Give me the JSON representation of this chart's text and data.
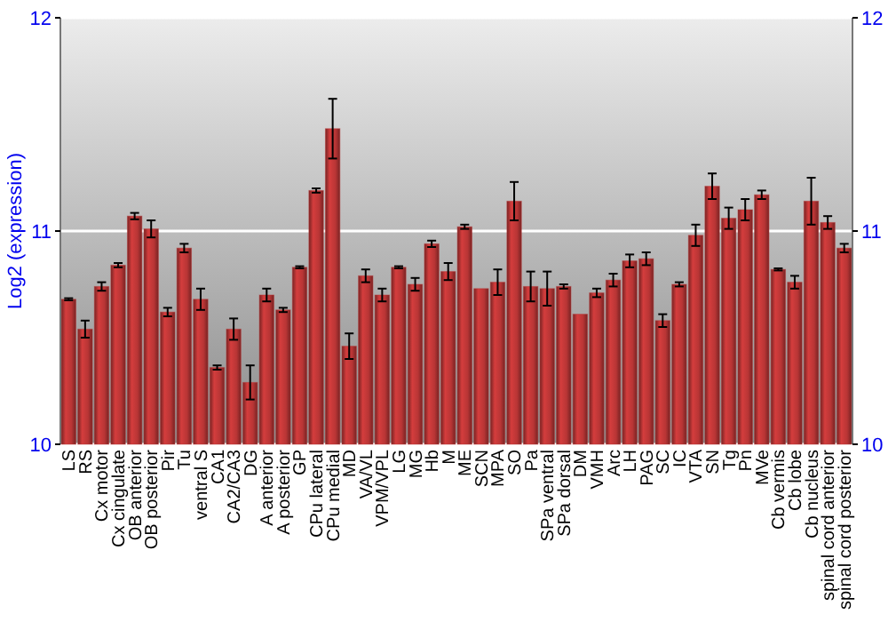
{
  "chart_data": {
    "type": "bar",
    "ylabel": "Log2 (expression)",
    "categories": [
      "LS",
      "RS",
      "Cx motor",
      "Cx cingulate",
      "OB anterior",
      "OB posterior",
      "Pir",
      "Tu",
      "ventral S",
      "CA1",
      "CA2/CA3",
      "DG",
      "A anterior",
      "A posterior",
      "GP",
      "CPu lateral",
      "CPu medial",
      "MD",
      "VA/VL",
      "VPM/VPL",
      "LG",
      "MG",
      "Hb",
      "M",
      "ME",
      "SCN",
      "MPA",
      "SO",
      "Pa",
      "SPa ventral",
      "SPa dorsal",
      "DM",
      "VMH",
      "Arc",
      "LH",
      "PAG",
      "SC",
      "IC",
      "VTA",
      "SN",
      "Tg",
      "Pn",
      "MVe",
      "Cb vermis",
      "Cb lobe",
      "Cb nucleus",
      "spinal cord anterior",
      "spinal cord posterior"
    ],
    "values": [
      10.68,
      10.54,
      10.74,
      10.84,
      11.07,
      11.01,
      10.62,
      10.92,
      10.68,
      10.36,
      10.54,
      10.29,
      10.7,
      10.63,
      10.83,
      11.19,
      11.48,
      10.46,
      10.79,
      10.7,
      10.83,
      10.75,
      10.94,
      10.81,
      11.02,
      10.73,
      10.76,
      11.14,
      10.74,
      10.73,
      10.74,
      10.61,
      10.71,
      10.77,
      10.86,
      10.87,
      10.58,
      10.75,
      10.98,
      11.21,
      11.06,
      11.1,
      11.17,
      10.82,
      10.76,
      11.14,
      11.04,
      10.92
    ],
    "errors": [
      0.005,
      0.04,
      0.02,
      0.01,
      0.015,
      0.04,
      0.02,
      0.02,
      0.05,
      0.01,
      0.05,
      0.08,
      0.03,
      0.01,
      0.005,
      0.01,
      0.14,
      0.06,
      0.03,
      0.03,
      0.005,
      0.03,
      0.015,
      0.04,
      0.01,
      null,
      0.06,
      0.09,
      0.07,
      0.08,
      0.01,
      null,
      0.02,
      0.03,
      0.03,
      0.03,
      0.03,
      0.01,
      0.05,
      0.06,
      0.05,
      0.05,
      0.02,
      0.005,
      0.03,
      0.11,
      0.03,
      0.02
    ],
    "color": "#b83535",
    "ylim": [
      10,
      12
    ],
    "yticks": [
      10,
      11,
      12
    ],
    "y2lim": [
      10,
      12
    ],
    "y2ticks": [
      10,
      11,
      12
    ],
    "grid": "y"
  }
}
